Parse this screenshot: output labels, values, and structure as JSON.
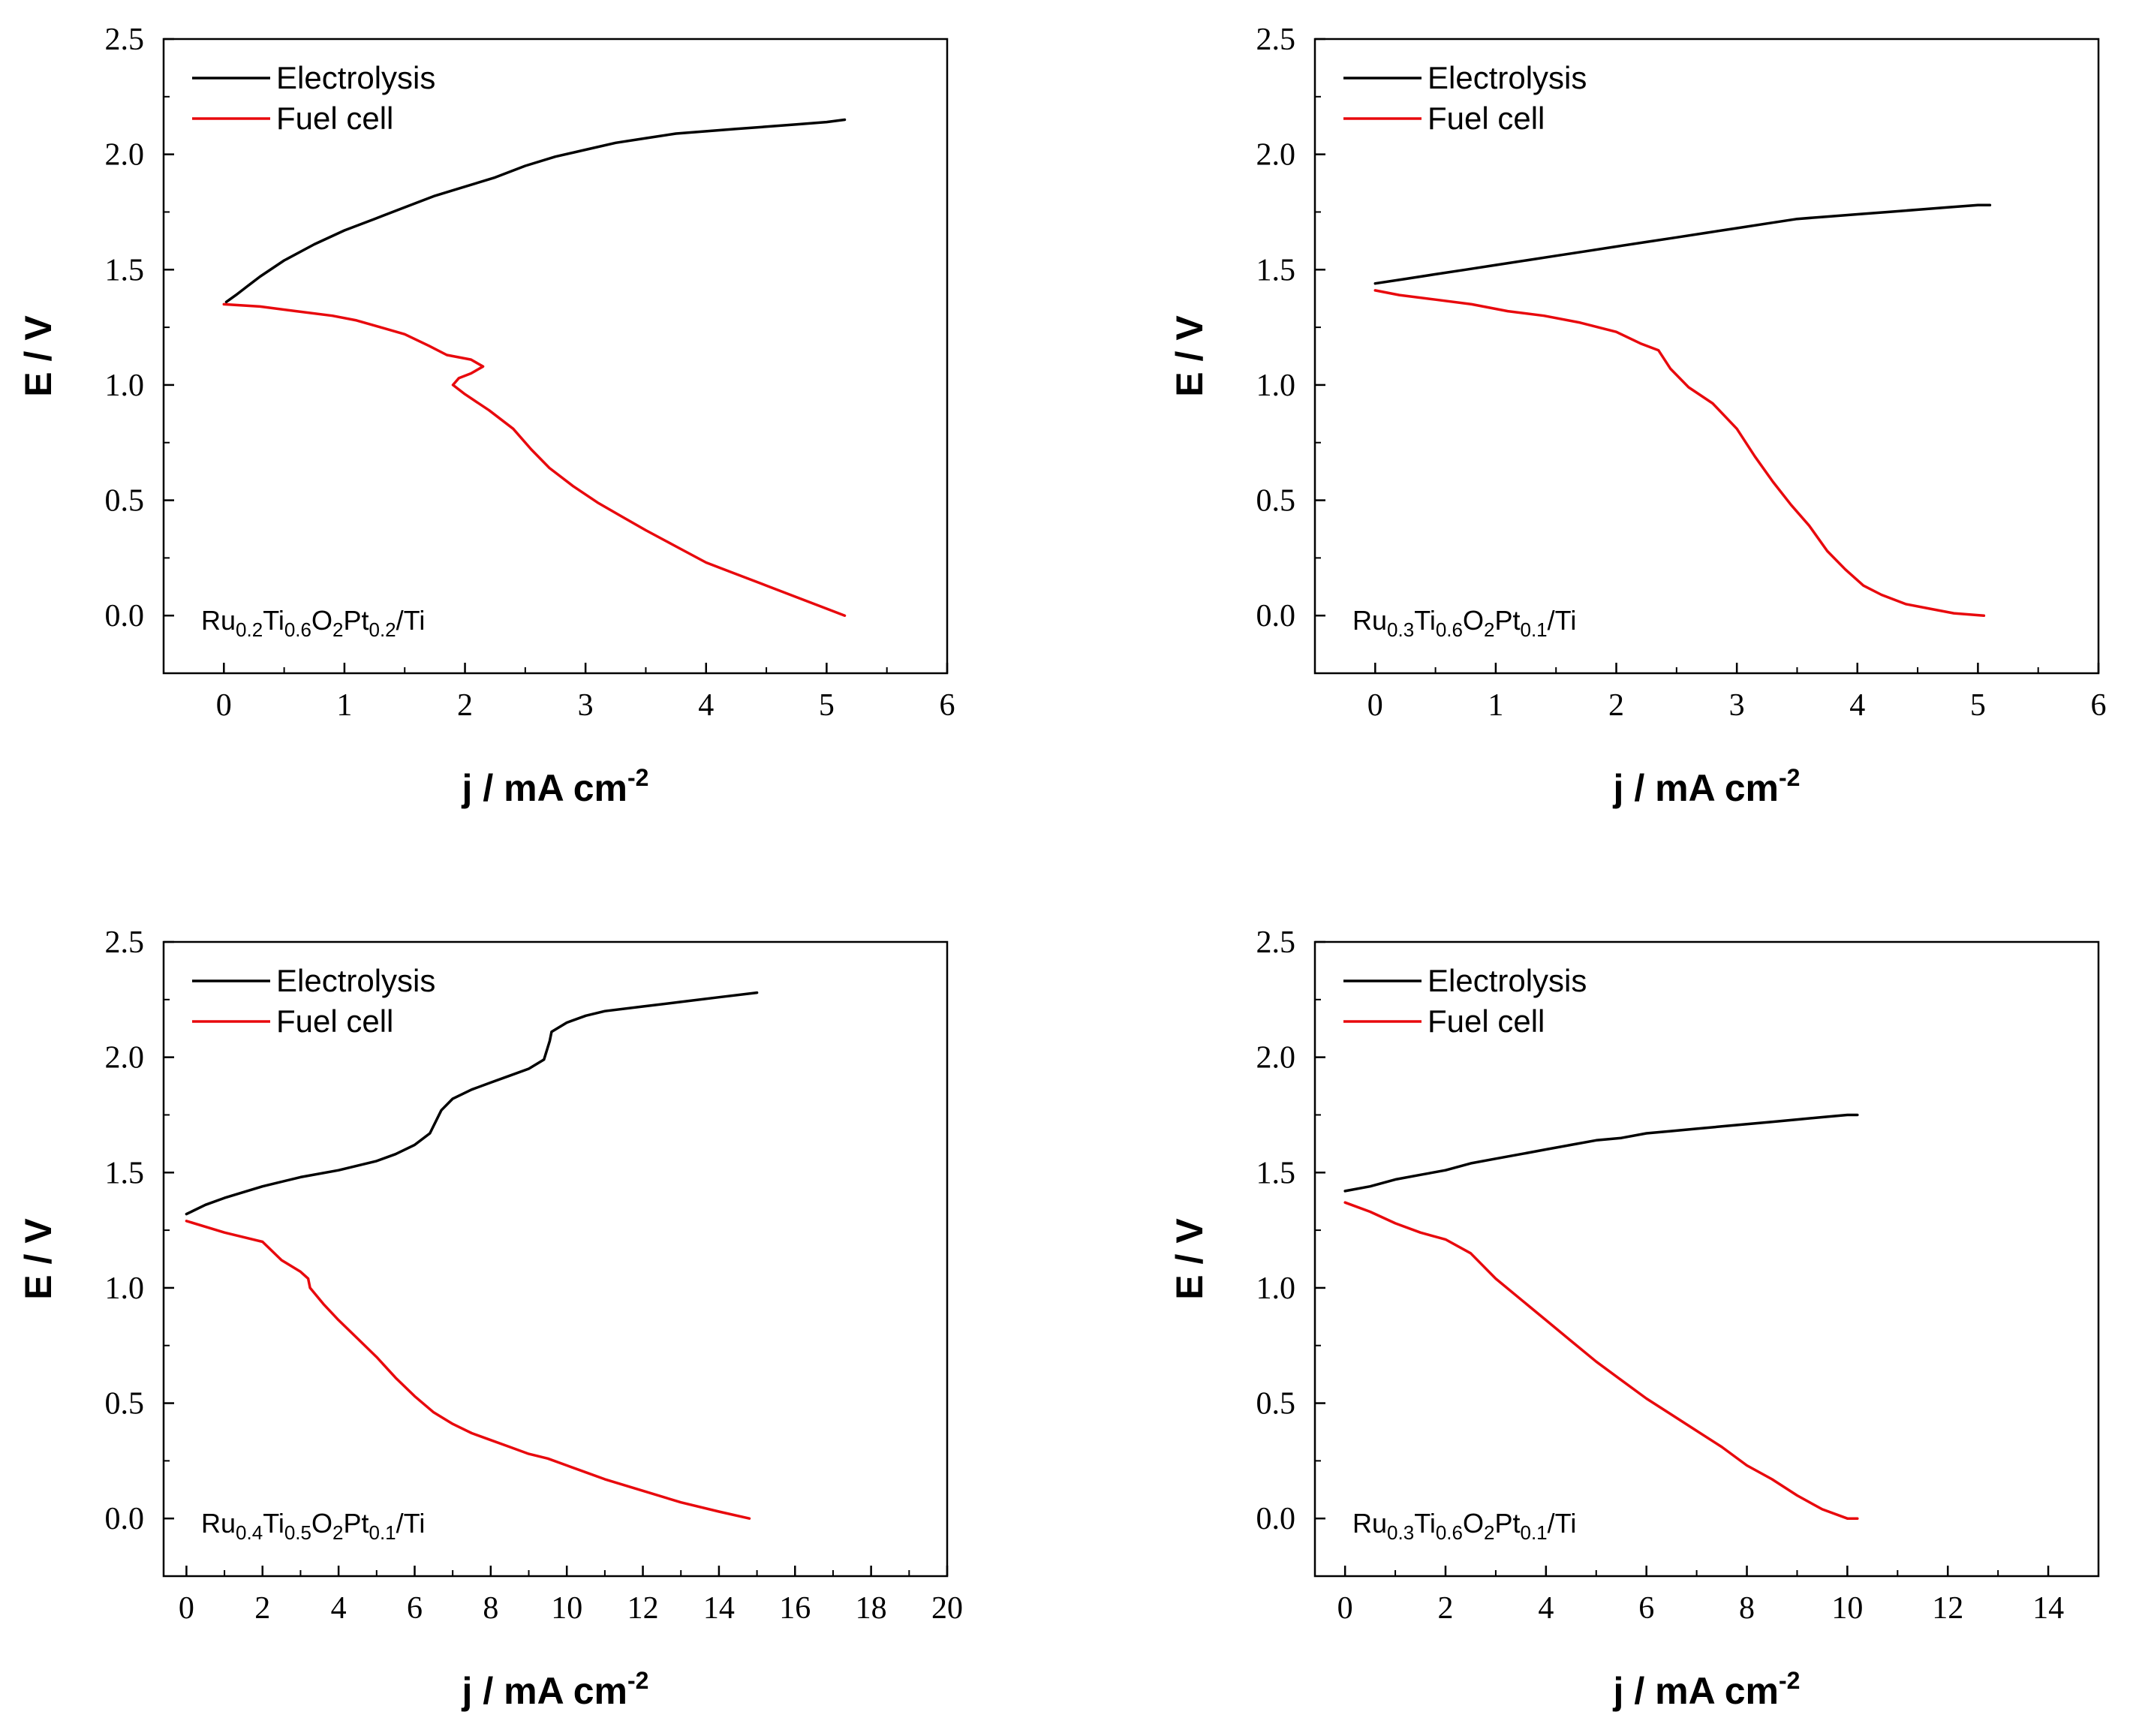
{
  "chart_data": [
    {
      "type": "line",
      "xlabel": "j / mA cm",
      "xlabel_sup": "-2",
      "ylabel": "E / V",
      "xlim": [
        -0.5,
        6
      ],
      "ylim": [
        -0.25,
        2.5
      ],
      "xticks": [
        0,
        1,
        2,
        3,
        4,
        5,
        6
      ],
      "yticks": [
        0.0,
        0.5,
        1.0,
        1.5,
        2.0,
        2.5
      ],
      "xtick_labels": [
        "0",
        "1",
        "2",
        "3",
        "4",
        "5",
        "6"
      ],
      "ytick_labels": [
        "0.0",
        "0.5",
        "1.0",
        "1.5",
        "2.0",
        "2.5"
      ],
      "legend_position": "top-left",
      "sample_label": [
        [
          "Ru",
          ""
        ],
        [
          "0.2",
          "sub"
        ],
        [
          "Ti",
          ""
        ],
        [
          "0.6",
          "sub"
        ],
        [
          "O",
          ""
        ],
        [
          "2",
          "sub"
        ],
        [
          "Pt",
          ""
        ],
        [
          "0.2",
          "sub"
        ],
        [
          "/Ti",
          ""
        ]
      ],
      "series": [
        {
          "name": "Electrolysis",
          "color": "#000000",
          "x": [
            0.02,
            0.1,
            0.2,
            0.3,
            0.5,
            0.75,
            1.0,
            1.25,
            1.5,
            1.75,
            2.0,
            2.25,
            2.5,
            2.75,
            3.0,
            3.25,
            3.5,
            3.75,
            4.0,
            4.25,
            4.5,
            4.75,
            5.0,
            5.15
          ],
          "y": [
            1.36,
            1.39,
            1.43,
            1.47,
            1.54,
            1.61,
            1.67,
            1.72,
            1.77,
            1.82,
            1.86,
            1.9,
            1.95,
            1.99,
            2.02,
            2.05,
            2.07,
            2.09,
            2.1,
            2.11,
            2.12,
            2.13,
            2.14,
            2.15
          ]
        },
        {
          "name": "Fuel cell",
          "color": "#e8090d",
          "x": [
            0.0,
            0.3,
            0.6,
            0.9,
            1.1,
            1.3,
            1.5,
            1.7,
            1.85,
            2.05,
            2.15,
            2.05,
            1.95,
            1.9,
            2.0,
            2.2,
            2.4,
            2.55,
            2.7,
            2.9,
            3.1,
            3.3,
            3.5,
            3.75,
            4.0,
            4.25,
            4.5,
            4.75,
            5.0,
            5.15
          ],
          "y": [
            1.35,
            1.34,
            1.32,
            1.3,
            1.28,
            1.25,
            1.22,
            1.17,
            1.13,
            1.11,
            1.08,
            1.05,
            1.03,
            1.0,
            0.96,
            0.89,
            0.81,
            0.72,
            0.64,
            0.56,
            0.49,
            0.43,
            0.37,
            0.3,
            0.23,
            0.18,
            0.13,
            0.08,
            0.03,
            0.0
          ]
        }
      ]
    },
    {
      "type": "line",
      "xlabel": "j / mA cm",
      "xlabel_sup": "-2",
      "ylabel": "E / V",
      "xlim": [
        -0.5,
        6
      ],
      "ylim": [
        -0.25,
        2.5
      ],
      "xticks": [
        0,
        1,
        2,
        3,
        4,
        5,
        6
      ],
      "yticks": [
        0.0,
        0.5,
        1.0,
        1.5,
        2.0,
        2.5
      ],
      "xtick_labels": [
        "0",
        "1",
        "2",
        "3",
        "4",
        "5",
        "6"
      ],
      "ytick_labels": [
        "0.0",
        "0.5",
        "1.0",
        "1.5",
        "2.0",
        "2.5"
      ],
      "legend_position": "top-left",
      "sample_label": [
        [
          "Ru",
          ""
        ],
        [
          "0.3",
          "sub"
        ],
        [
          "Ti",
          ""
        ],
        [
          "0.6",
          "sub"
        ],
        [
          "O",
          ""
        ],
        [
          "2",
          "sub"
        ],
        [
          "Pt",
          ""
        ],
        [
          "0.1",
          "sub"
        ],
        [
          "/Ti",
          ""
        ]
      ],
      "series": [
        {
          "name": "Electrolysis",
          "color": "#000000",
          "x": [
            0.0,
            0.25,
            0.5,
            0.75,
            1.0,
            1.25,
            1.5,
            1.75,
            2.0,
            2.25,
            2.5,
            2.75,
            3.0,
            3.25,
            3.5,
            3.75,
            4.0,
            4.25,
            4.5,
            4.75,
            5.0,
            5.1
          ],
          "y": [
            1.44,
            1.46,
            1.48,
            1.5,
            1.52,
            1.54,
            1.56,
            1.58,
            1.6,
            1.62,
            1.64,
            1.66,
            1.68,
            1.7,
            1.72,
            1.73,
            1.74,
            1.75,
            1.76,
            1.77,
            1.78,
            1.78
          ]
        },
        {
          "name": "Fuel cell",
          "color": "#e8090d",
          "x": [
            0.0,
            0.2,
            0.5,
            0.8,
            1.1,
            1.4,
            1.7,
            2.0,
            2.2,
            2.35,
            2.45,
            2.6,
            2.8,
            3.0,
            3.15,
            3.3,
            3.45,
            3.6,
            3.75,
            3.9,
            4.05,
            4.2,
            4.4,
            4.6,
            4.8,
            5.05
          ],
          "y": [
            1.41,
            1.39,
            1.37,
            1.35,
            1.32,
            1.3,
            1.27,
            1.23,
            1.18,
            1.15,
            1.07,
            0.99,
            0.92,
            0.81,
            0.69,
            0.58,
            0.48,
            0.39,
            0.28,
            0.2,
            0.13,
            0.09,
            0.05,
            0.03,
            0.01,
            0.0
          ]
        }
      ]
    },
    {
      "type": "line",
      "xlabel": "j / mA cm",
      "xlabel_sup": "-2",
      "ylabel": "E / V",
      "xlim": [
        -0.6,
        20
      ],
      "ylim": [
        -0.25,
        2.5
      ],
      "xticks": [
        0,
        2,
        4,
        6,
        8,
        10,
        12,
        14,
        16,
        18,
        20
      ],
      "yticks": [
        0.0,
        0.5,
        1.0,
        1.5,
        2.0,
        2.5
      ],
      "xtick_labels": [
        "0",
        "2",
        "4",
        "6",
        "8",
        "10",
        "12",
        "14",
        "16",
        "18",
        "20"
      ],
      "ytick_labels": [
        "0.0",
        "0.5",
        "1.0",
        "1.5",
        "2.0",
        "2.5"
      ],
      "legend_position": "top-left",
      "sample_label": [
        [
          "Ru",
          ""
        ],
        [
          "0.4",
          "sub"
        ],
        [
          "Ti",
          ""
        ],
        [
          "0.5",
          "sub"
        ],
        [
          "O",
          ""
        ],
        [
          "2",
          "sub"
        ],
        [
          "Pt",
          ""
        ],
        [
          "0.1",
          "sub"
        ],
        [
          "/Ti",
          ""
        ]
      ],
      "series": [
        {
          "name": "Electrolysis",
          "color": "#000000",
          "x": [
            0.0,
            0.5,
            1.0,
            2.0,
            3.0,
            4.0,
            5.0,
            5.5,
            6.0,
            6.4,
            6.7,
            7.0,
            7.5,
            8.0,
            8.5,
            9.0,
            9.4,
            9.55,
            9.6,
            10.0,
            10.5,
            11.0,
            12.0,
            13.0,
            14.0,
            15.0
          ],
          "y": [
            1.32,
            1.36,
            1.39,
            1.44,
            1.48,
            1.51,
            1.55,
            1.58,
            1.62,
            1.67,
            1.77,
            1.82,
            1.86,
            1.89,
            1.92,
            1.95,
            1.99,
            2.07,
            2.11,
            2.15,
            2.18,
            2.2,
            2.22,
            2.24,
            2.26,
            2.28
          ]
        },
        {
          "name": "Fuel cell",
          "color": "#e8090d",
          "x": [
            0.0,
            1.0,
            2.0,
            2.5,
            3.0,
            3.2,
            3.25,
            3.6,
            4.0,
            4.5,
            5.0,
            5.5,
            6.0,
            6.5,
            7.0,
            7.5,
            8.0,
            8.5,
            9.0,
            9.5,
            10.0,
            10.5,
            11.0,
            12.0,
            13.0,
            14.0,
            14.8
          ],
          "y": [
            1.29,
            1.24,
            1.2,
            1.12,
            1.07,
            1.04,
            1.0,
            0.93,
            0.86,
            0.78,
            0.7,
            0.61,
            0.53,
            0.46,
            0.41,
            0.37,
            0.34,
            0.31,
            0.28,
            0.26,
            0.23,
            0.2,
            0.17,
            0.12,
            0.07,
            0.03,
            0.0
          ]
        }
      ]
    },
    {
      "type": "line",
      "xlabel": "j / mA cm",
      "xlabel_sup": "-2",
      "ylabel": "E / V",
      "xlim": [
        -0.6,
        15
      ],
      "ylim": [
        -0.25,
        2.5
      ],
      "xticks": [
        0,
        2,
        4,
        6,
        8,
        10,
        12,
        14
      ],
      "yticks": [
        0.0,
        0.5,
        1.0,
        1.5,
        2.0,
        2.5
      ],
      "xtick_labels": [
        "0",
        "2",
        "4",
        "6",
        "8",
        "10",
        "12",
        "14"
      ],
      "ytick_labels": [
        "0.0",
        "0.5",
        "1.0",
        "1.5",
        "2.0",
        "2.5"
      ],
      "legend_position": "top-left",
      "sample_label": [
        [
          "Ru",
          ""
        ],
        [
          "0.3",
          "sub"
        ],
        [
          "Ti",
          ""
        ],
        [
          "0.6",
          "sub"
        ],
        [
          "O",
          ""
        ],
        [
          "2",
          "sub"
        ],
        [
          "Pt",
          ""
        ],
        [
          "0.1",
          "sub"
        ],
        [
          "/Ti",
          ""
        ]
      ],
      "series": [
        {
          "name": "Electrolysis",
          "color": "#000000",
          "x": [
            0.0,
            0.5,
            1.0,
            1.5,
            2.0,
            2.5,
            3.0,
            3.5,
            4.0,
            4.5,
            5.0,
            5.5,
            6.0,
            6.5,
            7.0,
            7.5,
            8.0,
            8.5,
            9.0,
            9.5,
            10.0,
            10.2
          ],
          "y": [
            1.42,
            1.44,
            1.47,
            1.49,
            1.51,
            1.54,
            1.56,
            1.58,
            1.6,
            1.62,
            1.64,
            1.65,
            1.67,
            1.68,
            1.69,
            1.7,
            1.71,
            1.72,
            1.73,
            1.74,
            1.75,
            1.75
          ]
        },
        {
          "name": "Fuel cell",
          "color": "#e8090d",
          "x": [
            0.0,
            0.5,
            1.0,
            1.5,
            2.0,
            2.5,
            3.0,
            3.5,
            4.0,
            4.5,
            5.0,
            5.5,
            6.0,
            6.5,
            7.0,
            7.5,
            8.0,
            8.5,
            9.0,
            9.5,
            10.0,
            10.2
          ],
          "y": [
            1.37,
            1.33,
            1.28,
            1.24,
            1.21,
            1.15,
            1.04,
            0.95,
            0.86,
            0.77,
            0.68,
            0.6,
            0.52,
            0.45,
            0.38,
            0.31,
            0.23,
            0.17,
            0.1,
            0.04,
            0.0,
            0.0
          ]
        }
      ]
    }
  ]
}
